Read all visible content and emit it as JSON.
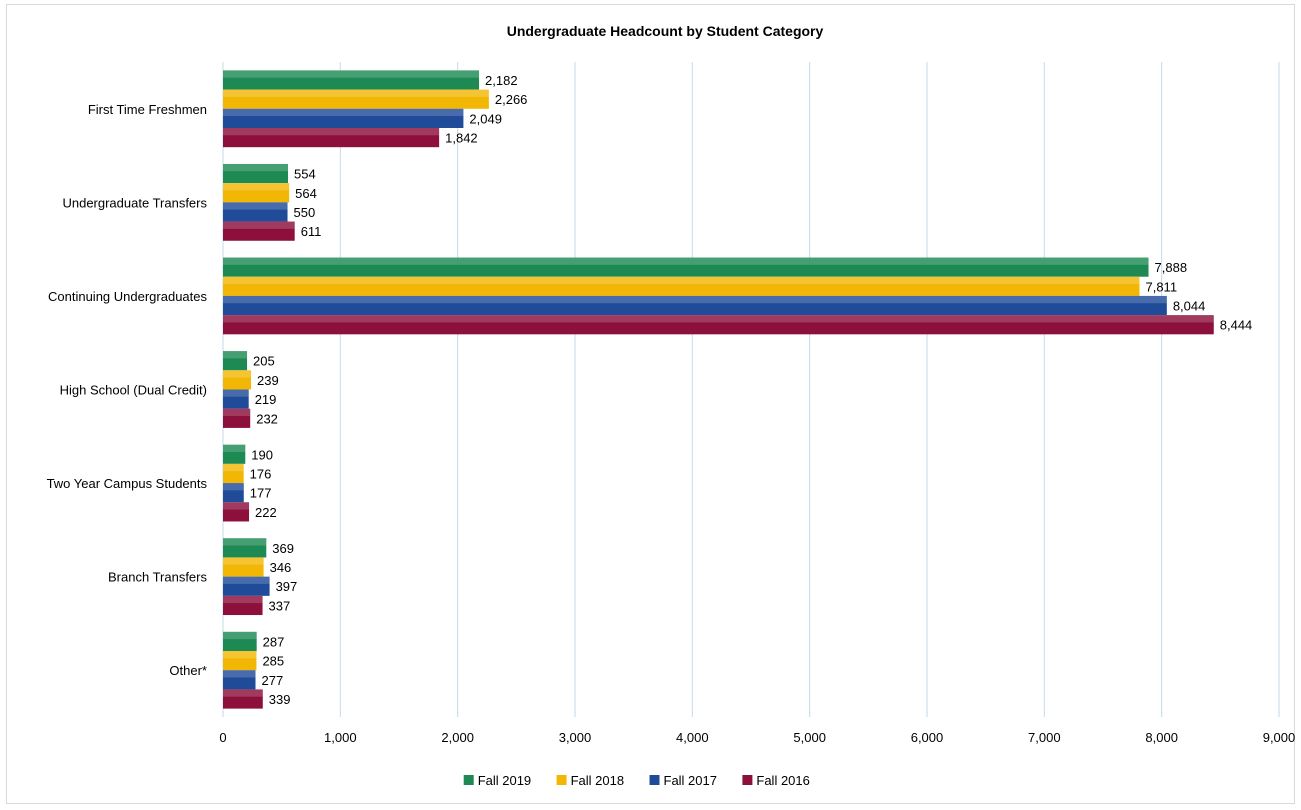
{
  "chart_data": {
    "type": "bar",
    "orientation": "horizontal",
    "title": "Undergraduate Headcount by Student Category",
    "categories": [
      "First Time Freshmen",
      "Undergraduate Transfers",
      "Continuing Undergraduates",
      "High School (Dual Credit)",
      "Two Year Campus Students",
      "Branch Transfers",
      "Other*"
    ],
    "series": [
      {
        "name": "Fall 2019",
        "color": "#1e8a53",
        "values": [
          2182,
          554,
          7888,
          205,
          190,
          369,
          287
        ]
      },
      {
        "name": "Fall 2018",
        "color": "#f2b705",
        "values": [
          2266,
          564,
          7811,
          239,
          176,
          346,
          285
        ]
      },
      {
        "name": "Fall 2017",
        "color": "#1f4b99",
        "values": [
          2049,
          550,
          8044,
          219,
          177,
          397,
          277
        ]
      },
      {
        "name": "Fall 2016",
        "color": "#8c0f3c",
        "values": [
          1842,
          611,
          8444,
          232,
          222,
          337,
          339
        ]
      }
    ],
    "xlim": [
      0,
      9000
    ],
    "xticks": [
      0,
      1000,
      2000,
      3000,
      4000,
      5000,
      6000,
      7000,
      8000,
      9000
    ],
    "xtick_labels": [
      "0",
      "1,000",
      "2,000",
      "3,000",
      "4,000",
      "5,000",
      "6,000",
      "7,000",
      "8,000",
      "9,000"
    ],
    "grid": true,
    "legend_position": "bottom"
  }
}
